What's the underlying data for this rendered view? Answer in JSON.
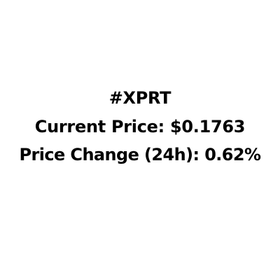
{
  "ticker": "#XPRT",
  "current_price": "Current Price: $0.1763",
  "price_change": "Price Change (24h): 0.62%",
  "colors": {
    "background": "#ffffff",
    "text": "#000000"
  }
}
